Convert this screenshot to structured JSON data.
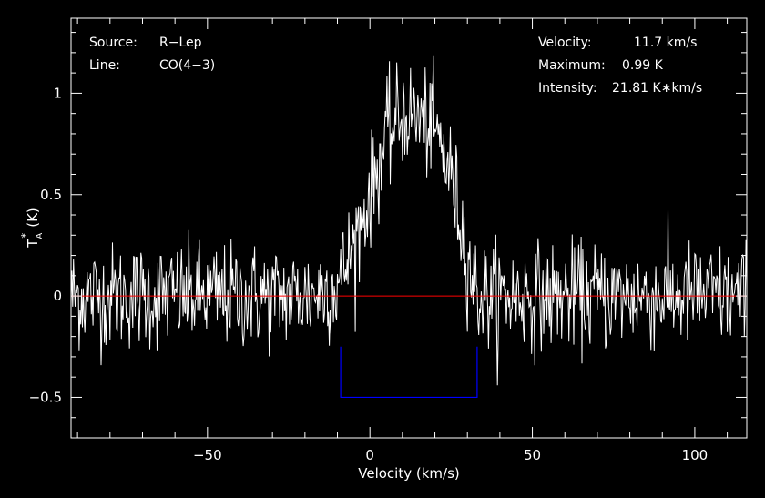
{
  "chart_data": {
    "type": "line",
    "xlabel": "Velocity (km/s)",
    "ylabel": "T",
    "ylabel_sub": "A",
    "ylabel_sup": "*",
    "ylabel_unit": "(K)",
    "xlim": [
      -92,
      116
    ],
    "ylim": [
      -0.7,
      1.37
    ],
    "x_ticks": [
      -50,
      0,
      50,
      100
    ],
    "x_tick_labels": [
      "−50",
      "0",
      "50",
      "100"
    ],
    "y_ticks": [
      -0.5,
      0,
      0.5,
      1
    ],
    "y_tick_labels": [
      "−0.5",
      "0",
      "0.5",
      "1"
    ],
    "grid": false,
    "series": [
      {
        "color": "#ffffff",
        "description_points": [
          [
            -92,
            0.0
          ],
          [
            -60,
            0.0
          ],
          [
            -20,
            0.0
          ],
          [
            -10,
            0.05
          ],
          [
            -5,
            0.25
          ],
          [
            0,
            0.5
          ],
          [
            5,
            0.78
          ],
          [
            10,
            0.9
          ],
          [
            15,
            0.88
          ],
          [
            20,
            0.82
          ],
          [
            25,
            0.6
          ],
          [
            30,
            0.2
          ],
          [
            33,
            0.0
          ],
          [
            60,
            0.0
          ],
          [
            116,
            0.0
          ]
        ],
        "noise_rms": 0.13,
        "channel_width": 0.25
      }
    ],
    "baseline": {
      "y": 0,
      "color": "#ff0000"
    },
    "integration_window": {
      "x_start": -9,
      "x_end": 33,
      "y": -0.5,
      "color": "#0000ff"
    },
    "annotations": {
      "source_label": "Source:",
      "source_value": "R−Lep",
      "line_label": "Line:",
      "line_value": "CO(4−3)",
      "velocity_label": "Velocity:",
      "velocity_value": "11.7 km/s",
      "maximum_label": "Maximum:",
      "maximum_value": "0.99 K",
      "intensity_label": "Intensity:",
      "intensity_value": "21.81 K∗km/s"
    }
  }
}
